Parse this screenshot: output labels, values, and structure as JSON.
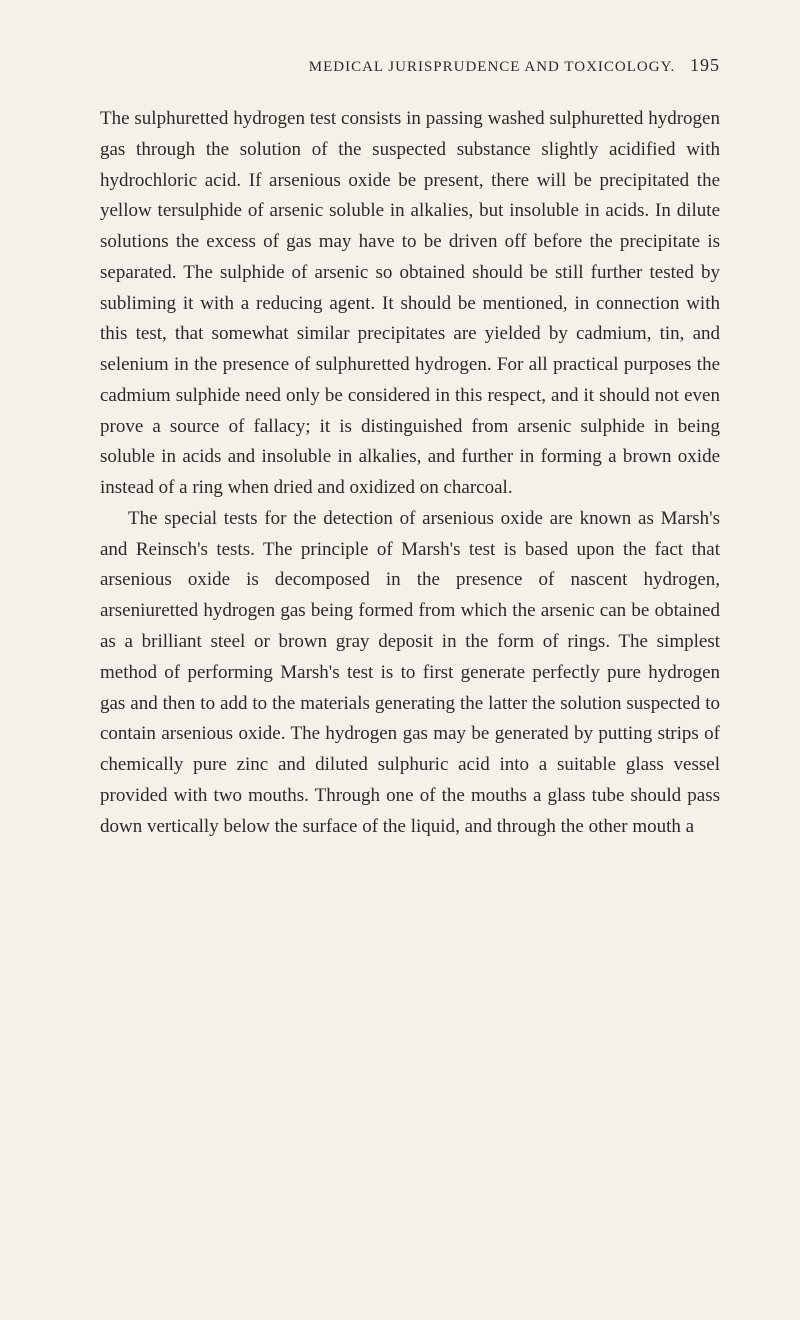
{
  "page": {
    "header_title": "MEDICAL JURISPRUDENCE AND TOXICOLOGY.",
    "page_number": "195",
    "background_color": "#f5f0e8",
    "text_color": "#2a2a2a",
    "font_family": "Georgia, 'Times New Roman', serif",
    "body_font_size": 19,
    "header_font_size": 15,
    "line_height": 1.62
  },
  "paragraphs": [
    {
      "text": "The sulphuretted hydrogen test consists in passing washed sulphuretted hydrogen gas through the solution of the suspected substance slightly acidified with hydrochloric acid. If arsenious oxide be present, there will be precipitated the yellow tersulphide of arsenic soluble in alkalies, but insoluble in acids. In dilute solutions the excess of gas may have to be driven off before the precipitate is separated. The sulphide of arsenic so obtained should be still further tested by subliming it with a reducing agent. It should be mentioned, in connection with this test, that somewhat similar precipitates are yielded by cadmium, tin, and selenium in the presence of sulphuretted hydrogen. For all practical purposes the cadmium sulphide need only be considered in this respect, and it should not even prove a source of fallacy; it is distinguished from arsenic sulphide in being soluble in acids and insoluble in alkalies, and further in forming a brown oxide instead of a ring when dried and oxidized on charcoal.",
      "indented": false
    },
    {
      "text": "The special tests for the detection of arsenious oxide are known as Marsh's and Reinsch's tests. The principle of Marsh's test is based upon the fact that arsenious oxide is decomposed in the presence of nascent hydrogen, arseniuretted hydrogen gas being formed from which the arsenic can be obtained as a brilliant steel or brown gray deposit in the form of rings. The simplest method of performing Marsh's test is to first generate perfectly pure hydrogen gas and then to add to the materials generating the latter the solution suspected to contain arsenious oxide. The hydrogen gas may be generated by putting strips of chemically pure zinc and diluted sulphuric acid into a suitable glass vessel provided with two mouths. Through one of the mouths a glass tube should pass down vertically below the surface of the liquid, and through the other mouth a",
      "indented": true
    }
  ]
}
